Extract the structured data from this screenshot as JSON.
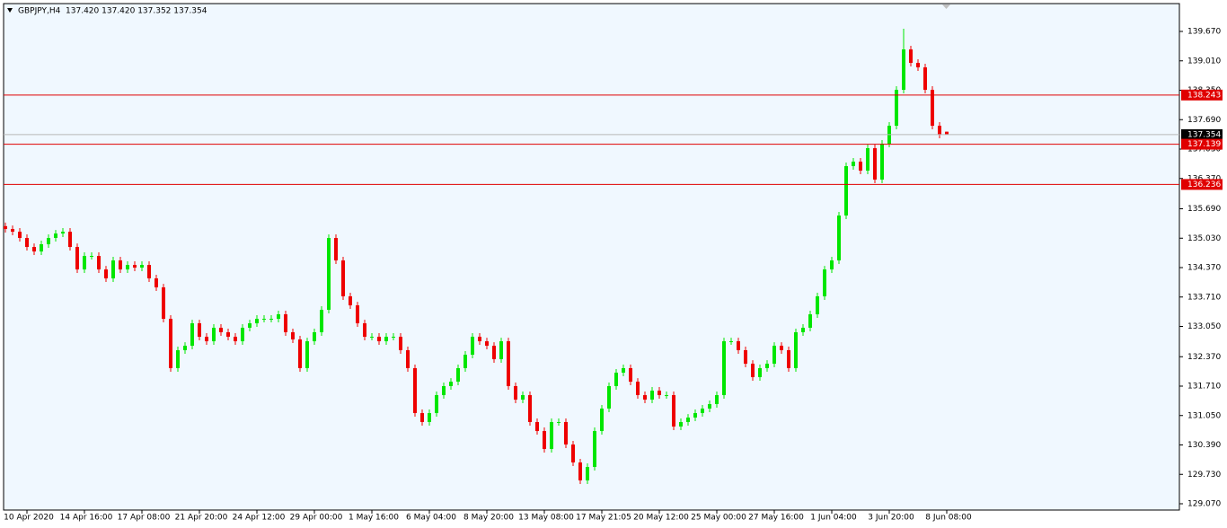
{
  "chart_data": {
    "type": "candlestick",
    "title": "GBPJPY,H4  137.420 137.420 137.352 137.354",
    "up_color": "#00e600",
    "down_color": "#ee0000",
    "ylim": [
      128.929,
      140.295
    ],
    "yticks": [
      {
        "value": 139.67,
        "label": "139.670"
      },
      {
        "value": 139.01,
        "label": "139.010"
      },
      {
        "value": 138.35,
        "label": "138.350"
      },
      {
        "value": 137.69,
        "label": "137.690"
      },
      {
        "value": 137.03,
        "label": "137.030"
      },
      {
        "value": 136.37,
        "label": "136.370"
      },
      {
        "value": 135.69,
        "label": "135.690"
      },
      {
        "value": 135.03,
        "label": "135.030"
      },
      {
        "value": 134.37,
        "label": "134.370"
      },
      {
        "value": 133.71,
        "label": "133.710"
      },
      {
        "value": 133.05,
        "label": "133.050"
      },
      {
        "value": 132.37,
        "label": "132.370"
      },
      {
        "value": 131.71,
        "label": "131.710"
      },
      {
        "value": 131.05,
        "label": "131.050"
      },
      {
        "value": 130.39,
        "label": "130.390"
      },
      {
        "value": 129.73,
        "label": "129.730"
      },
      {
        "value": 129.07,
        "label": "129.070"
      }
    ],
    "hlines": [
      {
        "value": 138.243,
        "label": "138.243",
        "color": "#e00000"
      },
      {
        "value": 137.354,
        "label": "137.354",
        "color": "#b8b8b8"
      },
      {
        "value": 137.139,
        "label": "137.139",
        "color": "#e00000"
      },
      {
        "value": 136.236,
        "label": "136.236",
        "color": "#e00000"
      }
    ],
    "categories": [
      null,
      null,
      null,
      "10 Apr 2020",
      null,
      null,
      null,
      null,
      null,
      null,
      null,
      "14 Apr 16:00",
      null,
      null,
      null,
      null,
      null,
      null,
      null,
      "17 Apr 08:00",
      null,
      null,
      null,
      null,
      null,
      null,
      null,
      "21 Apr 20:00",
      null,
      null,
      null,
      null,
      null,
      null,
      null,
      "24 Apr 12:00",
      null,
      null,
      null,
      null,
      null,
      null,
      null,
      "29 Apr 00:00",
      null,
      null,
      null,
      null,
      null,
      null,
      null,
      "1 May 16:00",
      null,
      null,
      null,
      null,
      null,
      null,
      null,
      "6 May 04:00",
      null,
      null,
      null,
      null,
      null,
      null,
      null,
      "8 May 20:00",
      null,
      null,
      null,
      null,
      null,
      null,
      null,
      "13 May 08:00",
      null,
      null,
      null,
      null,
      null,
      null,
      null,
      "17 May 21:05",
      null,
      null,
      null,
      null,
      null,
      null,
      null,
      "20 May 12:00",
      null,
      null,
      null,
      null,
      null,
      null,
      null,
      "25 May 00:00",
      null,
      null,
      null,
      null,
      null,
      null,
      null,
      "27 May 16:00",
      null,
      null,
      null,
      null,
      null,
      null,
      null,
      "1 Jun 04:00",
      null,
      null,
      null,
      null,
      null,
      null,
      null,
      "3 Jun 20:00",
      null,
      null,
      null,
      null,
      null,
      null,
      null,
      "8 Jun 08:00"
    ],
    "open": [
      135.3,
      135.236,
      135.176,
      135.035,
      134.833,
      134.732,
      134.894,
      135.035,
      135.135,
      135.176,
      134.833,
      134.329,
      134.632,
      134.632,
      134.329,
      134.128,
      134.531,
      134.329,
      134.43,
      134.37,
      134.43,
      134.128,
      133.926,
      133.221,
      132.113,
      132.516,
      132.616,
      133.12,
      132.818,
      132.717,
      133.02,
      132.919,
      132.818,
      132.717,
      133.02,
      133.12,
      133.221,
      133.221,
      133.221,
      133.322,
      132.919,
      132.758,
      132.113,
      132.717,
      132.919,
      133.423,
      135.035,
      134.531,
      133.725,
      133.523,
      133.12,
      132.818,
      132.818,
      132.717,
      132.818,
      132.818,
      132.516,
      132.113,
      131.105,
      130.904,
      131.105,
      131.508,
      131.71,
      131.81,
      132.113,
      132.415,
      132.818,
      132.717,
      132.616,
      132.314,
      132.717,
      131.71,
      131.407,
      131.508,
      130.904,
      130.702,
      130.299,
      130.904,
      130.904,
      130.4,
      129.997,
      129.594,
      129.896,
      130.702,
      131.206,
      131.71,
      132.012,
      132.113,
      131.81,
      131.508,
      131.407,
      131.609,
      131.508,
      131.508,
      130.803,
      130.904,
      131.004,
      131.105,
      131.206,
      131.307,
      131.508,
      132.717,
      132.717,
      132.516,
      132.213,
      131.911,
      132.113,
      132.213,
      132.616,
      132.516,
      132.113,
      132.919,
      133.02,
      133.322,
      133.725,
      134.329,
      134.531,
      135.539,
      136.647,
      136.748,
      136.546,
      137.05,
      136.345,
      137.151,
      137.554,
      138.36,
      139.267,
      138.965,
      138.864,
      138.36,
      137.554,
      137.42
    ],
    "high": [
      135.38,
      135.316,
      135.256,
      135.115,
      134.913,
      134.974,
      135.115,
      135.215,
      135.256,
      135.256,
      134.913,
      134.712,
      134.712,
      134.712,
      134.409,
      134.611,
      134.611,
      134.51,
      134.51,
      134.51,
      134.51,
      134.208,
      134.006,
      133.301,
      132.596,
      132.696,
      133.2,
      133.2,
      132.898,
      133.1,
      133.1,
      132.999,
      132.898,
      133.1,
      133.2,
      133.301,
      133.301,
      133.301,
      133.402,
      133.402,
      132.999,
      132.838,
      132.797,
      132.999,
      133.503,
      135.115,
      135.115,
      134.611,
      133.805,
      133.603,
      133.2,
      132.898,
      132.898,
      132.898,
      132.898,
      132.898,
      132.596,
      132.193,
      131.185,
      131.185,
      131.588,
      131.79,
      131.89,
      132.193,
      132.495,
      132.898,
      132.898,
      132.797,
      132.696,
      132.797,
      132.797,
      131.79,
      131.588,
      131.588,
      130.984,
      130.782,
      130.984,
      130.984,
      130.984,
      130.48,
      130.077,
      129.976,
      130.782,
      131.286,
      131.79,
      132.092,
      132.193,
      132.193,
      131.89,
      131.588,
      131.689,
      131.689,
      131.588,
      131.588,
      130.984,
      131.084,
      131.185,
      131.286,
      131.387,
      131.588,
      132.797,
      132.797,
      132.797,
      132.596,
      132.293,
      132.193,
      132.293,
      132.696,
      132.696,
      132.596,
      132.999,
      133.1,
      133.402,
      133.805,
      134.409,
      134.611,
      135.619,
      136.727,
      136.828,
      136.828,
      137.13,
      137.13,
      137.231,
      137.634,
      138.44,
      139.73,
      139.347,
      139.045,
      138.944,
      138.44,
      137.634,
      137.42
    ],
    "low": [
      135.156,
      135.096,
      134.955,
      134.753,
      134.652,
      134.652,
      134.814,
      134.955,
      135.055,
      134.753,
      134.249,
      134.249,
      134.552,
      134.249,
      134.048,
      134.048,
      134.249,
      134.249,
      134.29,
      134.29,
      134.048,
      133.846,
      133.141,
      132.033,
      132.033,
      132.436,
      132.536,
      132.738,
      132.637,
      132.637,
      132.839,
      132.738,
      132.637,
      132.637,
      132.94,
      133.04,
      133.141,
      133.141,
      133.141,
      132.839,
      132.678,
      132.033,
      132.033,
      132.637,
      132.839,
      133.343,
      134.451,
      133.645,
      133.443,
      133.04,
      132.738,
      132.738,
      132.637,
      132.637,
      132.738,
      132.436,
      132.033,
      131.025,
      130.824,
      130.824,
      131.025,
      131.428,
      131.63,
      131.73,
      132.033,
      132.335,
      132.637,
      132.536,
      132.234,
      132.234,
      131.63,
      131.327,
      131.327,
      130.824,
      130.622,
      130.219,
      130.219,
      130.824,
      130.32,
      129.917,
      129.514,
      129.514,
      129.816,
      130.622,
      131.126,
      131.63,
      131.932,
      131.73,
      131.428,
      131.327,
      131.327,
      131.428,
      131.428,
      130.723,
      130.723,
      130.824,
      130.924,
      131.025,
      131.126,
      131.227,
      131.428,
      132.637,
      132.436,
      132.133,
      131.831,
      131.831,
      132.033,
      132.133,
      132.436,
      132.033,
      132.033,
      132.839,
      132.94,
      133.242,
      133.645,
      134.249,
      134.451,
      135.459,
      136.567,
      136.466,
      136.466,
      136.265,
      136.265,
      137.071,
      137.474,
      138.28,
      138.885,
      138.784,
      138.28,
      137.474,
      137.272,
      137.352
    ],
    "close": [
      135.236,
      135.176,
      135.035,
      134.833,
      134.732,
      134.894,
      135.035,
      135.135,
      135.176,
      134.833,
      134.329,
      134.632,
      134.632,
      134.329,
      134.128,
      134.531,
      134.329,
      134.43,
      134.37,
      134.43,
      134.128,
      133.926,
      133.221,
      132.113,
      132.516,
      132.616,
      133.12,
      132.818,
      132.717,
      133.02,
      132.919,
      132.818,
      132.717,
      133.02,
      133.12,
      133.221,
      133.221,
      133.221,
      133.322,
      132.919,
      132.758,
      132.113,
      132.717,
      132.919,
      133.423,
      135.035,
      134.531,
      133.725,
      133.523,
      133.12,
      132.818,
      132.818,
      132.717,
      132.818,
      132.818,
      132.516,
      132.113,
      131.105,
      130.904,
      131.105,
      131.508,
      131.71,
      131.81,
      132.113,
      132.415,
      132.818,
      132.717,
      132.616,
      132.314,
      132.717,
      131.71,
      131.407,
      131.508,
      130.904,
      130.702,
      130.299,
      130.904,
      130.904,
      130.4,
      129.997,
      129.594,
      129.896,
      130.702,
      131.206,
      131.71,
      132.012,
      132.113,
      131.81,
      131.508,
      131.407,
      131.609,
      131.508,
      131.508,
      130.803,
      130.904,
      131.004,
      131.105,
      131.206,
      131.307,
      131.508,
      132.717,
      132.717,
      132.516,
      132.213,
      131.911,
      132.113,
      132.213,
      132.616,
      132.516,
      132.113,
      132.919,
      133.02,
      133.322,
      133.725,
      134.329,
      134.531,
      135.539,
      136.647,
      136.748,
      136.546,
      137.05,
      136.345,
      137.151,
      137.554,
      138.36,
      139.267,
      138.965,
      138.864,
      138.36,
      137.554,
      137.352,
      137.354
    ]
  }
}
